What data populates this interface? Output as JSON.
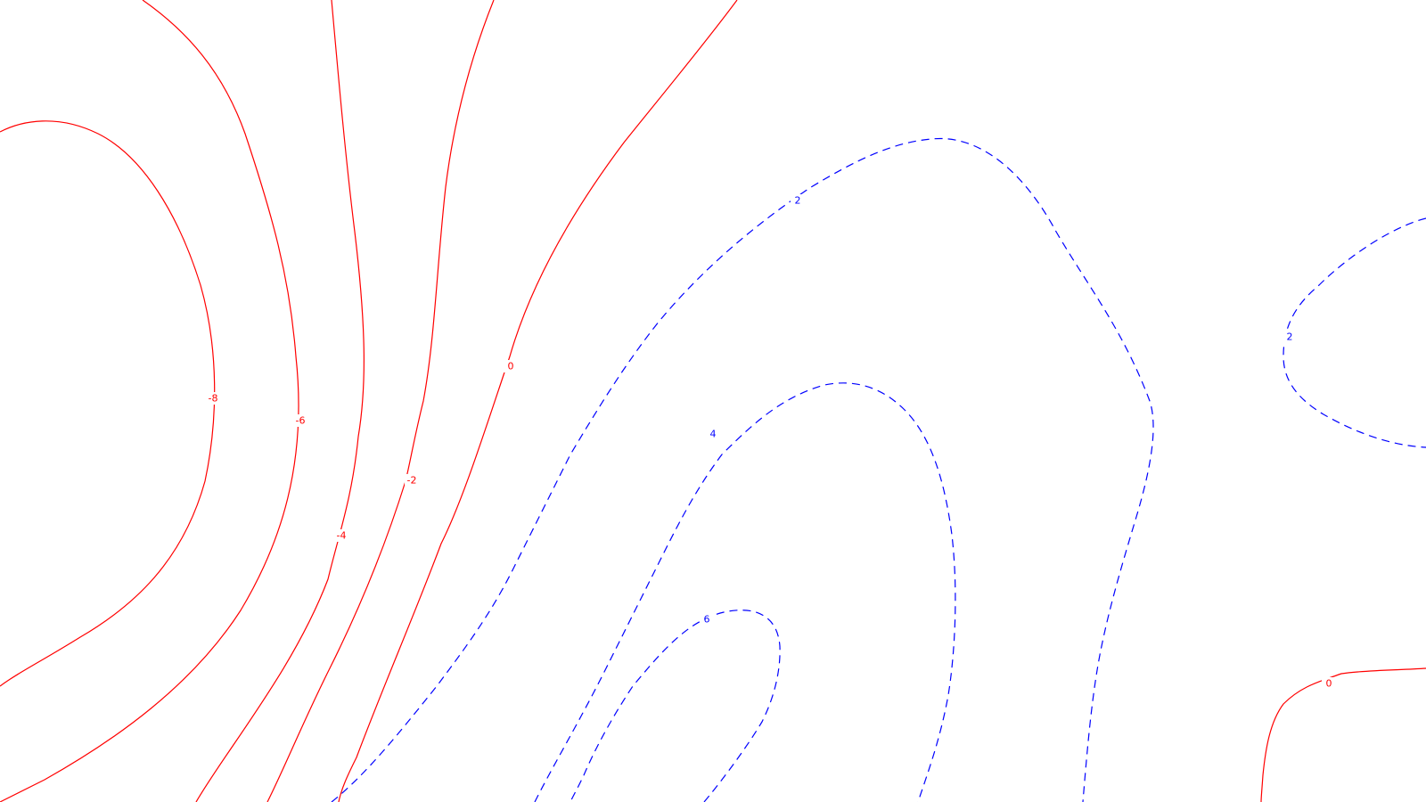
{
  "chart_data": {
    "type": "contour",
    "title": "",
    "xlabel": "",
    "ylabel": "",
    "grid": false,
    "colors": {
      "negative": "#ff0000",
      "positive": "#0000ff",
      "background": "#ffffff"
    },
    "line_styles": {
      "negative": "solid",
      "positive": "dashed"
    },
    "contour_levels": [
      {
        "level": -8,
        "label": "-8",
        "sign": "negative"
      },
      {
        "level": -6,
        "label": "-6",
        "sign": "negative"
      },
      {
        "level": -4,
        "label": "-4",
        "sign": "negative"
      },
      {
        "level": -2,
        "label": "-2",
        "sign": "negative"
      },
      {
        "level": 0,
        "label": "0",
        "sign": "negative"
      },
      {
        "level": 0,
        "label": "0",
        "sign": "negative"
      },
      {
        "level": 2,
        "label": "2",
        "sign": "positive"
      },
      {
        "level": 2,
        "label": "2",
        "sign": "positive"
      },
      {
        "level": 4,
        "label": "4",
        "sign": "positive"
      },
      {
        "level": 6,
        "label": "6",
        "sign": "positive"
      }
    ]
  }
}
